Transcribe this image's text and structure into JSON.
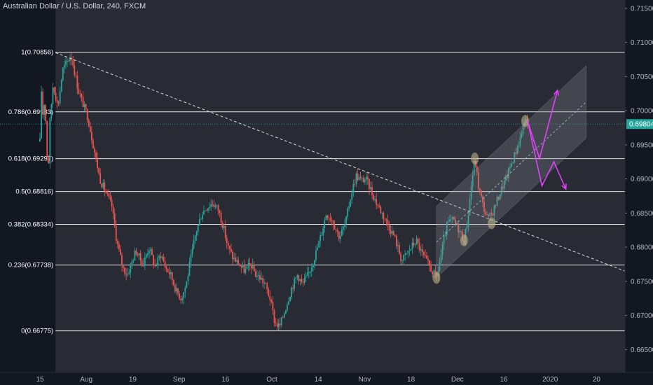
{
  "header": {
    "title": "Australian Dollar / U.S. Dollar, 240, FXCM"
  },
  "colors": {
    "background": "#131722",
    "fib_zone": "#3a3c44",
    "bull": "#26a69a",
    "bear": "#ef5350",
    "fib_line": "#e6e6e6",
    "trendline": "#d9d9d9",
    "channel_fill": "#8a8d94",
    "arrow": "#e040fb",
    "marker": "#c7b98a",
    "price_line": "#26a69a",
    "axis_text": "#b2b5be"
  },
  "chart_data": {
    "type": "candlestick",
    "title": "Australian Dollar / U.S. Dollar, 240, FXCM",
    "symbol": "AUDUSD",
    "timeframe": "240",
    "source": "FXCM",
    "last_price": "0.69804",
    "ylim": [
      0.6635,
      0.7155
    ],
    "y_ticks": [
      "0.71500",
      "0.71000",
      "0.70500",
      "0.70000",
      "0.69500",
      "0.69000",
      "0.68500",
      "0.68000",
      "0.67500",
      "0.67000",
      "0.66500"
    ],
    "x_ticks": [
      "15",
      "Aug",
      "19",
      "Sep",
      "16",
      "Oct",
      "14",
      "Nov",
      "18",
      "Dec",
      "16",
      "2020",
      "20"
    ],
    "fib_levels": [
      {
        "label": "1(0.70856)",
        "ratio": 1,
        "price": 0.70856
      },
      {
        "label": "0.786(0.69983)",
        "ratio": 0.786,
        "price": 0.69983
      },
      {
        "label": "0.618(0.69297)",
        "ratio": 0.618,
        "price": 0.69297
      },
      {
        "label": "0.5(0.68816)",
        "ratio": 0.5,
        "price": 0.68816
      },
      {
        "label": "0.382(0.68334)",
        "ratio": 0.382,
        "price": 0.68334
      },
      {
        "label": "0.236(0.67738)",
        "ratio": 0.236,
        "price": 0.67738
      },
      {
        "label": "0(0.66775)",
        "ratio": 0,
        "price": 0.66775
      }
    ],
    "price_path": [
      [
        0,
        0.6955
      ],
      [
        0.05,
        0.7035
      ],
      [
        0.13,
        0.699
      ],
      [
        0.2,
        0.702
      ],
      [
        0.3,
        0.6935
      ],
      [
        0.35,
        0.6915
      ],
      [
        0.42,
        0.6985
      ],
      [
        0.55,
        0.704
      ],
      [
        0.75,
        0.7005
      ],
      [
        0.95,
        0.706
      ],
      [
        1.3,
        0.7082
      ],
      [
        1.6,
        0.703
      ],
      [
        2.0,
        0.699
      ],
      [
        2.5,
        0.69
      ],
      [
        3.0,
        0.686
      ],
      [
        3.2,
        0.681
      ],
      [
        3.45,
        0.677
      ],
      [
        3.65,
        0.676
      ],
      [
        3.85,
        0.678
      ],
      [
        4.0,
        0.6795
      ],
      [
        4.3,
        0.6775
      ],
      [
        4.55,
        0.68
      ],
      [
        4.8,
        0.6772
      ],
      [
        5.05,
        0.679
      ],
      [
        5.25,
        0.677
      ],
      [
        5.45,
        0.676
      ],
      [
        5.7,
        0.6735
      ],
      [
        5.9,
        0.6725
      ],
      [
        6.1,
        0.6745
      ],
      [
        6.25,
        0.6775
      ],
      [
        6.5,
        0.682
      ],
      [
        6.75,
        0.685
      ],
      [
        6.95,
        0.6858
      ],
      [
        7.2,
        0.6865
      ],
      [
        7.45,
        0.6855
      ],
      [
        7.65,
        0.683
      ],
      [
        7.85,
        0.68
      ],
      [
        8.05,
        0.6785
      ],
      [
        8.3,
        0.6775
      ],
      [
        8.55,
        0.6765
      ],
      [
        8.8,
        0.6775
      ],
      [
        9.0,
        0.676
      ],
      [
        9.2,
        0.6755
      ],
      [
        9.4,
        0.6745
      ],
      [
        9.6,
        0.6725
      ],
      [
        9.8,
        0.669
      ],
      [
        10.0,
        0.6683
      ],
      [
        10.2,
        0.6705
      ],
      [
        10.5,
        0.674
      ],
      [
        10.75,
        0.676
      ],
      [
        10.95,
        0.6745
      ],
      [
        11.2,
        0.676
      ],
      [
        11.5,
        0.679
      ],
      [
        11.75,
        0.682
      ],
      [
        11.95,
        0.685
      ],
      [
        12.2,
        0.684
      ],
      [
        12.5,
        0.6815
      ],
      [
        12.75,
        0.6835
      ],
      [
        13.0,
        0.688
      ],
      [
        13.2,
        0.6905
      ],
      [
        13.4,
        0.6898
      ],
      [
        13.6,
        0.69
      ],
      [
        13.8,
        0.6885
      ],
      [
        14.0,
        0.6868
      ],
      [
        14.2,
        0.6855
      ],
      [
        14.5,
        0.6835
      ],
      [
        14.8,
        0.6815
      ],
      [
        15.1,
        0.678
      ],
      [
        15.4,
        0.6795
      ],
      [
        15.7,
        0.681
      ],
      [
        15.95,
        0.679
      ],
      [
        16.2,
        0.6775
      ],
      [
        16.45,
        0.676
      ],
      [
        16.55,
        0.6755
      ],
      [
        16.75,
        0.679
      ],
      [
        17.0,
        0.6835
      ],
      [
        17.25,
        0.684
      ],
      [
        17.5,
        0.6825
      ],
      [
        17.7,
        0.681
      ],
      [
        17.85,
        0.684
      ],
      [
        18.0,
        0.689
      ],
      [
        18.15,
        0.693
      ],
      [
        18.3,
        0.689
      ],
      [
        18.5,
        0.686
      ],
      [
        18.7,
        0.684
      ],
      [
        18.9,
        0.6852
      ],
      [
        19.2,
        0.688
      ],
      [
        19.5,
        0.6905
      ],
      [
        19.8,
        0.6935
      ],
      [
        20.05,
        0.696
      ],
      [
        20.2,
        0.6985
      ],
      [
        20.35,
        0.698
      ]
    ],
    "projection_arrows": [
      [
        [
          20.35,
          0.6985
        ],
        [
          20.85,
          0.693
        ],
        [
          21.6,
          0.703
        ]
      ],
      [
        [
          20.35,
          0.6985
        ],
        [
          20.95,
          0.689
        ],
        [
          21.45,
          0.6925
        ],
        [
          21.95,
          0.6885
        ]
      ]
    ],
    "markers": [
      [
        16.55,
        0.6755
      ],
      [
        17.7,
        0.681
      ],
      [
        18.15,
        0.693
      ],
      [
        18.85,
        0.6835
      ],
      [
        20.25,
        0.6985
      ]
    ]
  },
  "axis": {
    "price_badge": "0.69804"
  }
}
